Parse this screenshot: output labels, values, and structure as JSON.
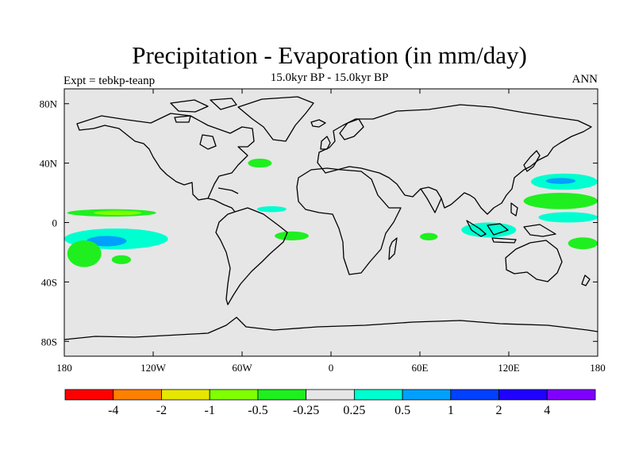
{
  "chart_data": {
    "type": "heatmap",
    "title": "Precipitation - Evaporation (in mm/day)",
    "subtitle": "15.0kyr BP - 15.0kyr BP",
    "experiment_label": "Expt = tebkp-teanp",
    "season": "ANN",
    "x_axis": {
      "range": [
        -180,
        180
      ],
      "ticks": [
        -180,
        -120,
        -60,
        0,
        60,
        120,
        180
      ],
      "tick_labels": [
        "180",
        "120W",
        "60W",
        "0",
        "60E",
        "120E",
        "180"
      ]
    },
    "y_axis": {
      "range": [
        -90,
        90
      ],
      "ticks": [
        80,
        40,
        0,
        -40,
        -80
      ],
      "tick_labels": [
        "80N",
        "40N",
        "0",
        "40S",
        "80S"
      ]
    },
    "colorbar": {
      "colors": [
        "#ff0000",
        "#ff8000",
        "#e6e600",
        "#80ff00",
        "#1fef1f",
        "#e6e6e6",
        "#00ffd0",
        "#00a0ff",
        "#0040ff",
        "#2000ff",
        "#8000ff"
      ],
      "boundaries": [
        -4,
        -2,
        -1,
        -0.5,
        -0.25,
        0.25,
        0.5,
        1,
        2,
        4
      ],
      "labels": [
        "-4",
        "-2",
        "-1",
        "-0.5",
        "-0.25",
        "0.25",
        "0.5",
        "1",
        "2",
        "4"
      ]
    },
    "anomaly_regions": [
      {
        "name": "central-pacific-itcz-green",
        "color": "#1fef1f",
        "lon": [
          -178,
          -118
        ],
        "lat": [
          4,
          9
        ]
      },
      {
        "name": "central-pacific-itcz-lightgreen",
        "color": "#80ff00",
        "lon": [
          -160,
          -128
        ],
        "lat": [
          5,
          8
        ]
      },
      {
        "name": "south-pacific-cyan",
        "color": "#00ffd0",
        "lon": [
          -180,
          -110
        ],
        "lat": [
          -18,
          -4
        ]
      },
      {
        "name": "south-pacific-blue",
        "color": "#00a0ff",
        "lon": [
          -165,
          -138
        ],
        "lat": [
          -16,
          -9
        ]
      },
      {
        "name": "south-pacific-green",
        "color": "#1fef1f",
        "lon": [
          -178,
          -155
        ],
        "lat": [
          -30,
          -12
        ]
      },
      {
        "name": "south-pacific-green-2",
        "color": "#1fef1f",
        "lon": [
          -148,
          -135
        ],
        "lat": [
          -28,
          -22
        ]
      },
      {
        "name": "tropical-atlantic-green",
        "color": "#1fef1f",
        "lon": [
          -38,
          -15
        ],
        "lat": [
          -12,
          -6
        ]
      },
      {
        "name": "tropical-atlantic-cyan",
        "color": "#00ffd0",
        "lon": [
          -50,
          -30
        ],
        "lat": [
          7,
          11
        ]
      },
      {
        "name": "north-atlantic-green",
        "color": "#1fef1f",
        "lon": [
          -56,
          -40
        ],
        "lat": [
          37,
          43
        ]
      },
      {
        "name": "indian-ocean-green",
        "color": "#1fef1f",
        "lon": [
          60,
          72
        ],
        "lat": [
          -12,
          -7
        ]
      },
      {
        "name": "maritime-continent-cyan",
        "color": "#00ffd0",
        "lon": [
          88,
          125
        ],
        "lat": [
          -10,
          0
        ]
      },
      {
        "name": "west-pacific-cyan",
        "color": "#00ffd0",
        "lon": [
          135,
          180
        ],
        "lat": [
          22,
          33
        ]
      },
      {
        "name": "west-pacific-blue",
        "color": "#00a0ff",
        "lon": [
          145,
          165
        ],
        "lat": [
          26,
          30
        ]
      },
      {
        "name": "west-pacific-green",
        "color": "#1fef1f",
        "lon": [
          130,
          180
        ],
        "lat": [
          9,
          20
        ]
      },
      {
        "name": "equatorial-pacific-cyan",
        "color": "#00ffd0",
        "lon": [
          140,
          180
        ],
        "lat": [
          0,
          7
        ]
      },
      {
        "name": "southwest-pacific-green",
        "color": "#1fef1f",
        "lon": [
          160,
          180
        ],
        "lat": [
          -18,
          -10
        ]
      }
    ]
  }
}
